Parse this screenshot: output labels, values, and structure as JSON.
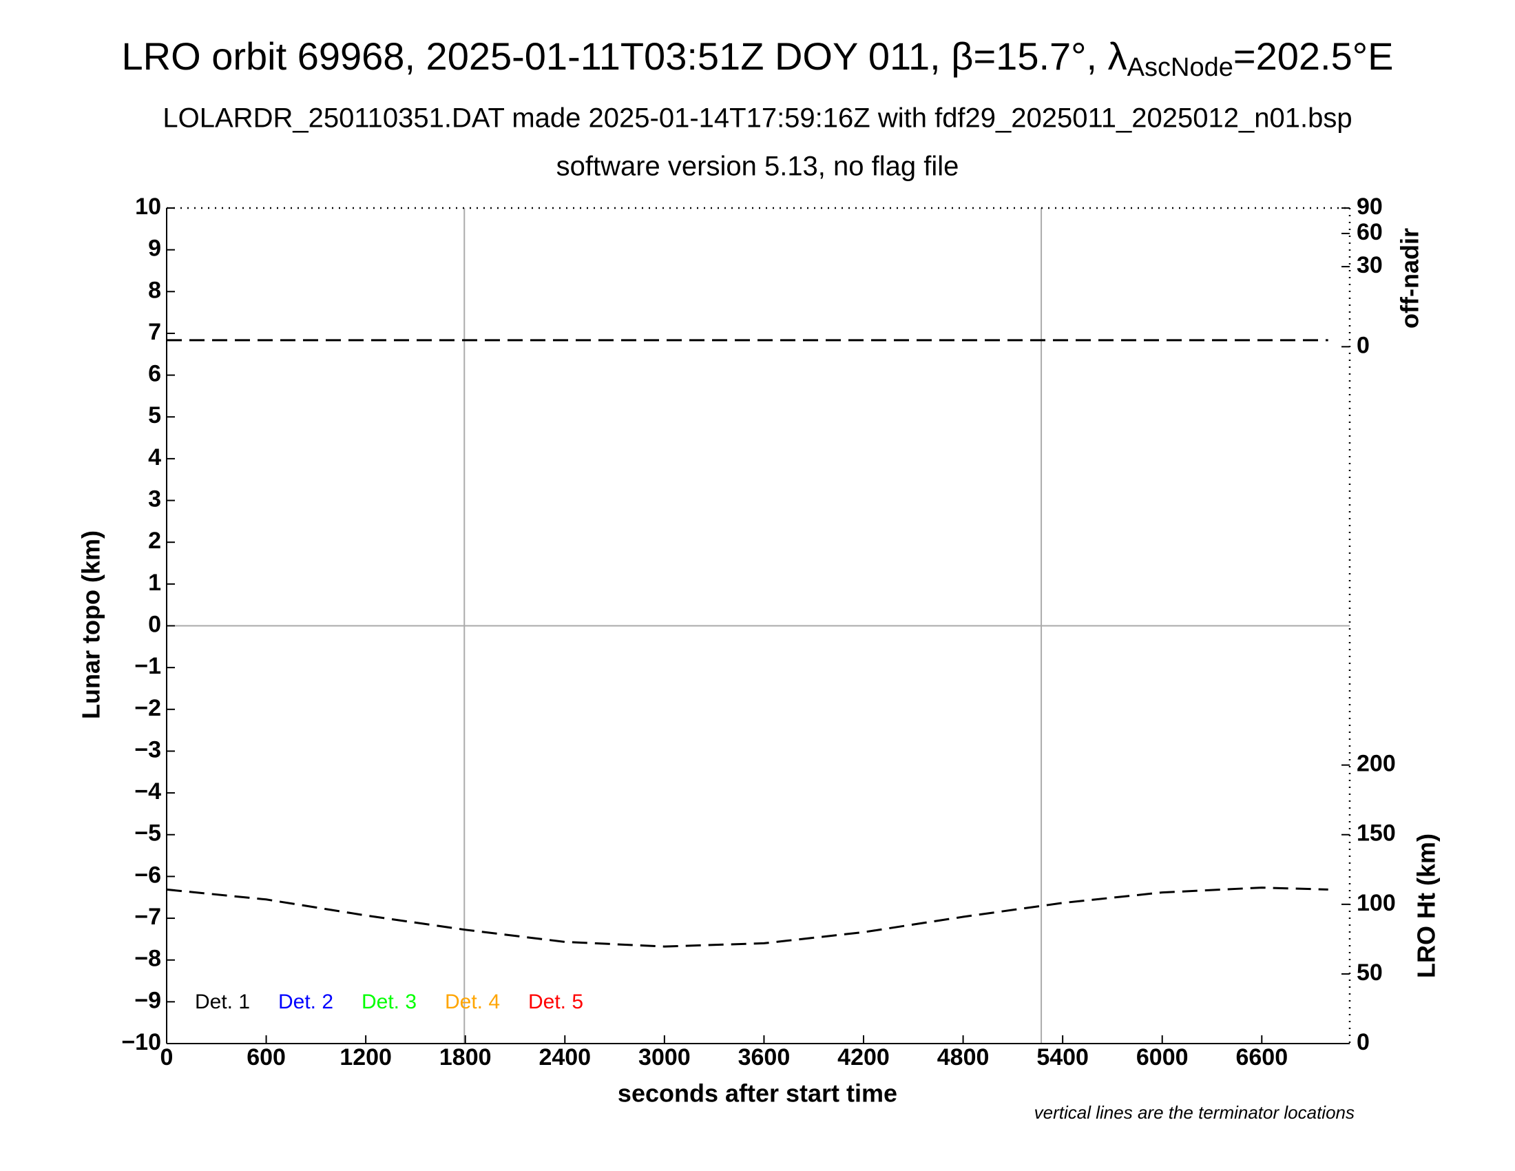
{
  "chart_data": {
    "type": "line",
    "title_parts": [
      "LRO orbit 69968, 2025-01-11T03:51Z DOY 011, β=15.7°, λ",
      "AscNode",
      "=202.5°E"
    ],
    "subtitle_lines": [
      "LOLARDR_250110351.DAT made 2025-01-14T17:59:16Z with fdf29_2025011_2025012_n01.bsp",
      "software version 5.13, no flag file"
    ],
    "xlabel": "seconds after start time",
    "ylabel": "Lunar topo (km)",
    "y2label": "LRO Ht (km)",
    "y3label": "off-nadir",
    "note": "vertical lines are the terminator locations",
    "xlim": [
      0,
      7130
    ],
    "xticks": [
      0,
      600,
      1200,
      1800,
      2400,
      3000,
      3600,
      4200,
      4800,
      5400,
      6000,
      6600
    ],
    "ylim": [
      -10,
      10
    ],
    "yticks": [
      {
        "value": -10,
        "label": "−10"
      },
      {
        "value": -9,
        "label": "−9"
      },
      {
        "value": -8,
        "label": "−8"
      },
      {
        "value": -7,
        "label": "−7"
      },
      {
        "value": -6,
        "label": "−6"
      },
      {
        "value": -5,
        "label": "−5"
      },
      {
        "value": -4,
        "label": "−4"
      },
      {
        "value": -3,
        "label": "−3"
      },
      {
        "value": -2,
        "label": "−2"
      },
      {
        "value": -1,
        "label": "−1"
      },
      0,
      1,
      2,
      3,
      4,
      5,
      6,
      7,
      8,
      9,
      10
    ],
    "y2lim": [
      0,
      600
    ],
    "y2ticks": [
      0,
      50,
      100,
      150,
      200
    ],
    "y3lim": [
      0,
      90
    ],
    "y3ticks": [
      0,
      30,
      60,
      90
    ],
    "y3scale": "sqrt",
    "hlines": [
      0
    ],
    "vlines": [
      1794,
      5271
    ],
    "series": [
      {
        "axis": "y2",
        "color": "#000000",
        "dashed": true,
        "x": [
          0,
          600,
          1200,
          1800,
          2400,
          3000,
          3600,
          4200,
          4800,
          5400,
          6000,
          6600,
          7000
        ],
        "values": [
          110.6,
          103.5,
          92,
          81.7,
          73,
          69.7,
          72,
          80,
          91,
          101,
          108.5,
          112,
          110.6
        ]
      },
      {
        "axis": "y3",
        "color": "#000000",
        "dashed": true,
        "x": [
          0,
          1200,
          2400,
          3600,
          4800,
          6000,
          7000
        ],
        "values": [
          0.2,
          0.2,
          0.2,
          0.2,
          0.2,
          0.2,
          0.2
        ]
      }
    ],
    "legend": [
      {
        "name": "Det. 1",
        "color": "#000000"
      },
      {
        "name": "Det. 2",
        "color": "#0000ff"
      },
      {
        "name": "Det. 3",
        "color": "#00ff00"
      },
      {
        "name": "Det. 4",
        "color": "#ffa500"
      },
      {
        "name": "Det. 5",
        "color": "#ff0000"
      }
    ]
  }
}
